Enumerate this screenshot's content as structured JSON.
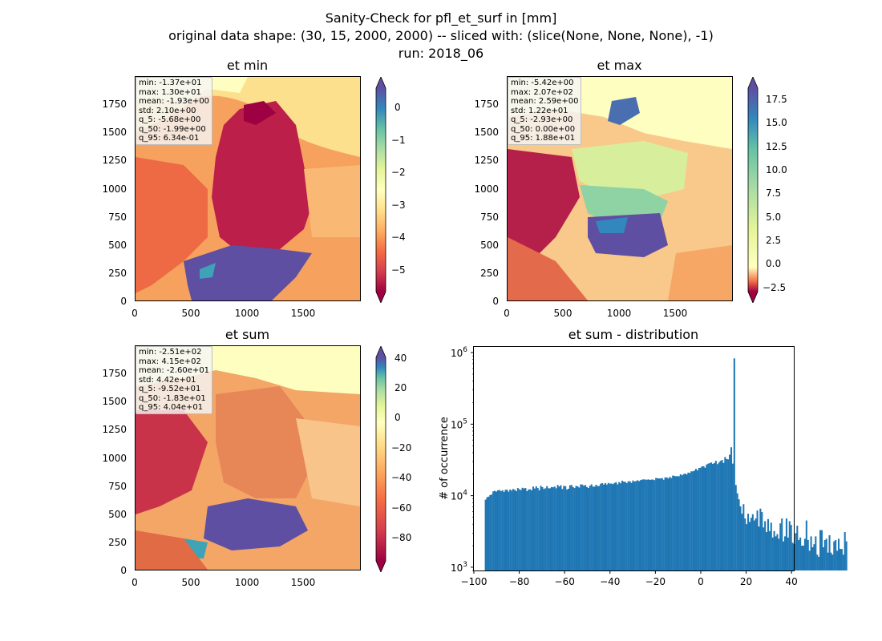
{
  "figure": {
    "title_line1": "Sanity-Check for pfl_et_surf in [mm]",
    "title_line2": "original data shape: (30, 15, 2000, 2000) -- sliced with: (slice(None, None, None), -1)",
    "title_line3": "run: 2018_06"
  },
  "colormap": {
    "name": "Spectral",
    "stops": [
      "#9e0142",
      "#d53e4f",
      "#f46d43",
      "#fdae61",
      "#fee08b",
      "#ffffbf",
      "#e6f598",
      "#abdda4",
      "#66c2a5",
      "#3288bd",
      "#5e4fa2"
    ]
  },
  "panels": [
    {
      "title": "et min",
      "xticks": [
        "0",
        "500",
        "1000",
        "1500"
      ],
      "yticks": [
        "0",
        "250",
        "500",
        "750",
        "1000",
        "1250",
        "1500",
        "1750"
      ],
      "colorbar_ticks": [
        "0",
        "−1",
        "−2",
        "−3",
        "−4",
        "−5"
      ],
      "stats": [
        "min: -1.37e+01",
        "max: 1.30e+01",
        "mean: -1.93e+00",
        "std: 2.10e+00",
        "q_5: -5.68e+00",
        "q_50: -1.99e+00",
        "q_95: 6.34e-01"
      ]
    },
    {
      "title": "et max",
      "xticks": [
        "0",
        "500",
        "1000",
        "1500"
      ],
      "yticks": [
        "0",
        "250",
        "500",
        "750",
        "1000",
        "1250",
        "1500",
        "1750"
      ],
      "colorbar_ticks": [
        "17.5",
        "15.0",
        "12.5",
        "10.0",
        "7.5",
        "5.0",
        "2.5",
        "0.0",
        "−2.5"
      ],
      "stats": [
        "min: -5.42e+00",
        "max: 2.07e+02",
        "mean: 2.59e+00",
        "std: 1.22e+01",
        "q_5: -2.93e+00",
        "q_50: 0.00e+00",
        "q_95: 1.88e+01"
      ]
    },
    {
      "title": "et sum",
      "xticks": [
        "0",
        "500",
        "1000",
        "1500"
      ],
      "yticks": [
        "0",
        "250",
        "500",
        "750",
        "1000",
        "1250",
        "1500",
        "1750"
      ],
      "colorbar_ticks": [
        "40",
        "20",
        "0",
        "−20",
        "−40",
        "−60",
        "−80"
      ],
      "stats": [
        "min: -2.51e+02",
        "max: 4.15e+02",
        "mean: -2.60e+01",
        "std: 4.42e+01",
        "q_5: -9.52e+01",
        "q_50: -1.83e+01",
        "q_95: 4.04e+01"
      ]
    }
  ],
  "chart_data": [
    {
      "type": "heatmap",
      "title": "et min",
      "xlim": [
        0,
        2000
      ],
      "ylim": [
        0,
        2000
      ],
      "colorbar": {
        "vmin": -5.68,
        "vmax": 0.634,
        "extend": "both",
        "ticks": [
          0,
          -1,
          -2,
          -3,
          -4,
          -5
        ]
      }
    },
    {
      "type": "heatmap",
      "title": "et max",
      "xlim": [
        0,
        2000
      ],
      "ylim": [
        0,
        2000
      ],
      "colorbar": {
        "vmin": -2.93,
        "vmax": 18.8,
        "extend": "both",
        "ticks": [
          17.5,
          15.0,
          12.5,
          10.0,
          7.5,
          5.0,
          2.5,
          0.0,
          -2.5
        ]
      }
    },
    {
      "type": "heatmap",
      "title": "et sum",
      "xlim": [
        0,
        2000
      ],
      "ylim": [
        0,
        2000
      ],
      "colorbar": {
        "vmin": -95.2,
        "vmax": 40.4,
        "extend": "both",
        "ticks": [
          40,
          20,
          0,
          -20,
          -40,
          -60,
          -80
        ]
      }
    },
    {
      "type": "bar",
      "title": "et sum - distribution",
      "ylabel": "# of occurrence",
      "xlabel": "",
      "yscale": "log",
      "xlim": [
        -100,
        41
      ],
      "ylim": [
        900,
        1200000
      ],
      "color": "#1f77b4",
      "xticks": [
        "−100",
        "−80",
        "−60",
        "−40",
        "−20",
        "0",
        "20",
        "40"
      ],
      "yticks": [
        "10^3",
        "10^4",
        "10^5",
        "10^6"
      ],
      "x_start": -95.2,
      "bin_width": 0.6767,
      "values": [
        8800,
        9500,
        9700,
        10200,
        10400,
        11500,
        11700,
        11400,
        11900,
        12000,
        11600,
        11900,
        11300,
        12100,
        12100,
        11400,
        12200,
        11800,
        12400,
        12100,
        11600,
        12800,
        12300,
        12000,
        12900,
        12600,
        12800,
        11600,
        12200,
        12300,
        11900,
        13400,
        12600,
        13500,
        12800,
        11900,
        13700,
        13200,
        12400,
        12700,
        13600,
        12700,
        12700,
        13200,
        13100,
        13400,
        12700,
        14100,
        13400,
        14000,
        12400,
        13700,
        13600,
        12200,
        12500,
        14000,
        14100,
        13200,
        12800,
        13700,
        13500,
        13000,
        14400,
        14300,
        13800,
        14100,
        13200,
        12800,
        13800,
        14400,
        13400,
        13400,
        14200,
        13600,
        13700,
        14700,
        15000,
        14300,
        15000,
        14300,
        15100,
        14700,
        14800,
        14500,
        15100,
        15400,
        14400,
        15500,
        14900,
        16200,
        15700,
        15600,
        15000,
        15900,
        15900,
        15100,
        16300,
        15800,
        16000,
        16400,
        16000,
        16500,
        16800,
        16900,
        16800,
        16700,
        16900,
        16600,
        16800,
        16800,
        16500,
        17700,
        17500,
        17400,
        17400,
        17600,
        16700,
        18000,
        18000,
        17400,
        18300,
        17700,
        19100,
        18900,
        18700,
        18700,
        18700,
        19900,
        19300,
        20000,
        20400,
        19800,
        21000,
        20800,
        21900,
        21900,
        22400,
        23700,
        22600,
        24400,
        24600,
        25700,
        25800,
        24600,
        27300,
        28000,
        28500,
        29100,
        27800,
        28600,
        30700,
        27600,
        29100,
        30600,
        31600,
        28700,
        34700,
        32500,
        32200,
        37400,
        47500,
        28100,
        830000,
        14100,
        10800,
        8900,
        7100,
        5600,
        7600,
        4800,
        4000,
        5600,
        4300,
        4900,
        5500,
        4500,
        4800,
        6200,
        3700,
        6600,
        5900,
        3600,
        4400,
        3100,
        4700,
        3200,
        4200,
        2600,
        3200,
        2700,
        2900,
        2500,
        4100,
        4800,
        2300,
        2700,
        4800,
        2600,
        4400,
        3900,
        2200,
        2100,
        3000,
        3800,
        2400,
        2600,
        2000,
        2000,
        2500,
        4500,
        2400,
        1700,
        2700,
        1900,
        2100,
        2700,
        1500,
        1400,
        3300,
        3300,
        1900,
        2400,
        2500,
        1600,
        2800,
        1600,
        1500,
        2300,
        2400,
        1700,
        2500,
        1800,
        1800,
        1500,
        3100,
        2300
      ]
    }
  ]
}
